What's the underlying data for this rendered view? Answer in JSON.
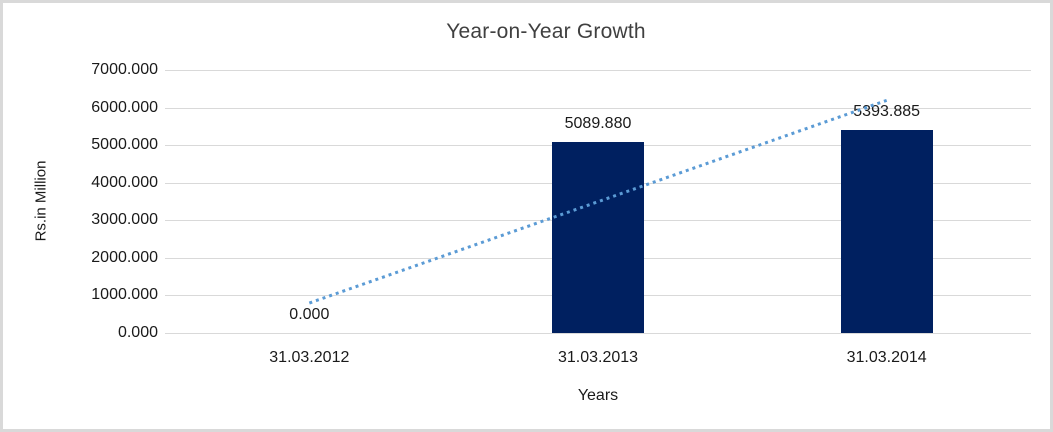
{
  "frame": {
    "background": "#ffffff",
    "border_color": "#d9d9d9"
  },
  "chart_data": {
    "type": "bar",
    "title": "Year-on-Year Growth",
    "xlabel": "Years",
    "ylabel": "Rs.in Million",
    "categories": [
      "31.03.2012",
      "31.03.2013",
      "31.03.2014"
    ],
    "values": [
      0.0,
      5089.88,
      5393.885
    ],
    "data_labels": [
      "0.000",
      "5089.880",
      "5393.885"
    ],
    "yticks_values": [
      0,
      1000,
      2000,
      3000,
      4000,
      5000,
      6000,
      7000
    ],
    "yticks_labels": [
      "0.000",
      "1000.000",
      "2000.000",
      "3000.000",
      "4000.000",
      "5000.000",
      "6000.000",
      "7000.000"
    ],
    "ylim": [
      0,
      7000
    ],
    "grid": true,
    "legend": "none",
    "bar_color": "#002060",
    "gridline_color": "#d9d9d9",
    "text_color": "#1a1a1a",
    "title_color": "#404040",
    "trendline": {
      "type": "linear",
      "style": "dotted",
      "color": "#5b9bd5",
      "series": "values"
    }
  }
}
